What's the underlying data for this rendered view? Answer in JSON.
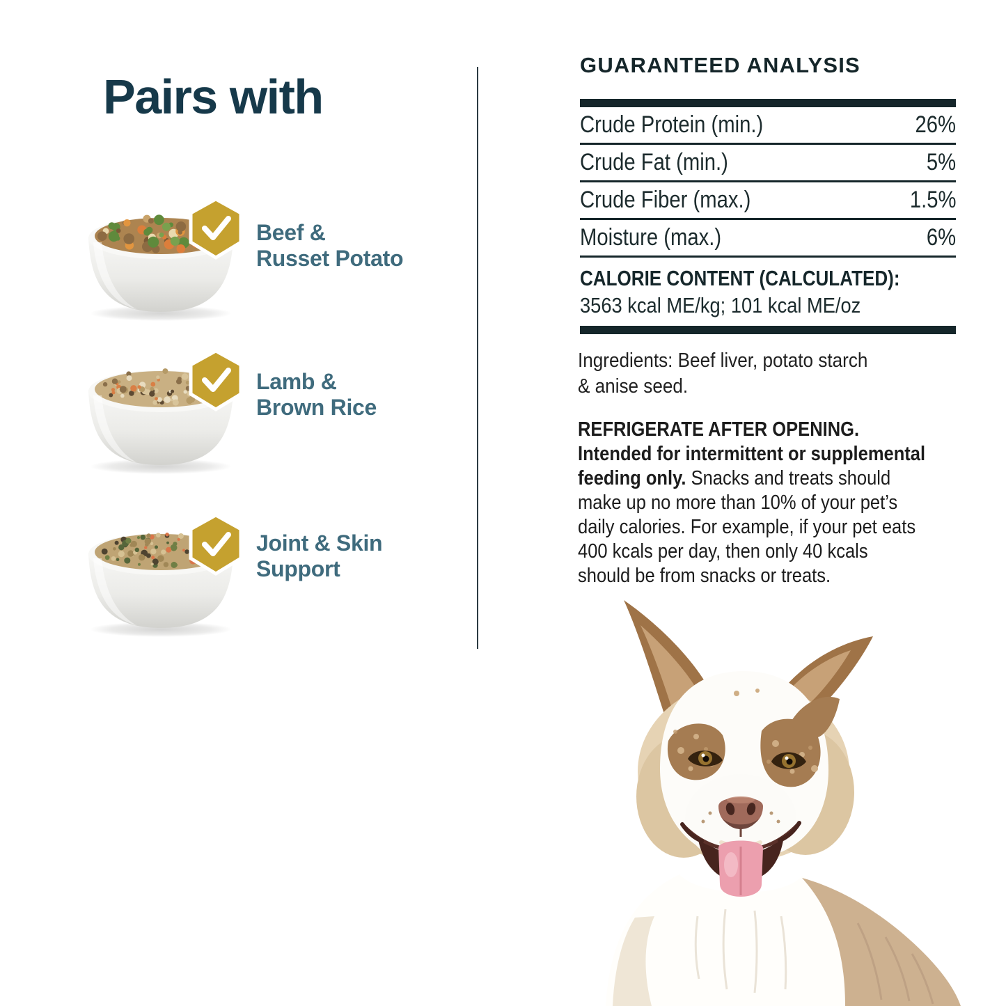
{
  "colors": {
    "heading_teal": "#16394a",
    "label_teal": "#3f6b7d",
    "badge_gold": "#c5a12f",
    "ink": "#15262a",
    "body_text": "#212121",
    "divider": "#2c3b42"
  },
  "pairs_with": {
    "title": "Pairs with",
    "items": [
      {
        "name": "Beef & Russet Potato",
        "line1": "Beef &",
        "line2": "Russet Potato",
        "badge": "checkmark",
        "food_base": "#ad8450",
        "food_colors": [
          "#dc7e3b",
          "#e2953f",
          "#79a14e",
          "#5f8a3c",
          "#ead9ae",
          "#8d6b42",
          "#7a5a36",
          "#c9a36a"
        ]
      },
      {
        "name": "Lamb & Brown Rice",
        "line1": "Lamb &",
        "line2": "Brown Rice",
        "badge": "checkmark",
        "food_base": "#c9b083",
        "food_colors": [
          "#b59a67",
          "#e8dcc0",
          "#8a6f4a",
          "#d97f45",
          "#5d4a33",
          "#d8c49a"
        ]
      },
      {
        "name": "Joint & Skin Support",
        "line1": "Joint & Skin",
        "line2": "Support",
        "badge": "checkmark",
        "food_base": "#bfa474",
        "food_colors": [
          "#a08756",
          "#6f7f45",
          "#55663a",
          "#d9764a",
          "#4e4330",
          "#d6c193"
        ]
      }
    ]
  },
  "analysis": {
    "title": "GUARANTEED ANALYSIS",
    "rows": [
      {
        "label": "Crude Protein (min.)",
        "value": "26%"
      },
      {
        "label": "Crude Fat (min.)",
        "value": "5%"
      },
      {
        "label": "Crude Fiber (max.)",
        "value": "1.5%"
      },
      {
        "label": "Moisture (max.)",
        "value": "6%"
      }
    ],
    "calorie_title": "CALORIE CONTENT (CALCULATED):",
    "calorie_value": "3563 kcal ME/kg; 101 kcal ME/oz"
  },
  "ingredients": {
    "line1": "Ingredients: Beef liver, potato starch",
    "line2": "& anise seed."
  },
  "feeding": {
    "line1": "REFRIGERATE AFTER OPENING.",
    "line2": "Intended for intermittent or supplemental",
    "line3_bold": "feeding only.",
    "line3_rest": " Snacks and treats should",
    "line4": "make up no more than 10% of your pet’s",
    "line5": "daily calories. For example, if your pet eats",
    "line6": "400 kcals per day, then only 40 kcals",
    "line7": "should be from snacks or treats."
  }
}
